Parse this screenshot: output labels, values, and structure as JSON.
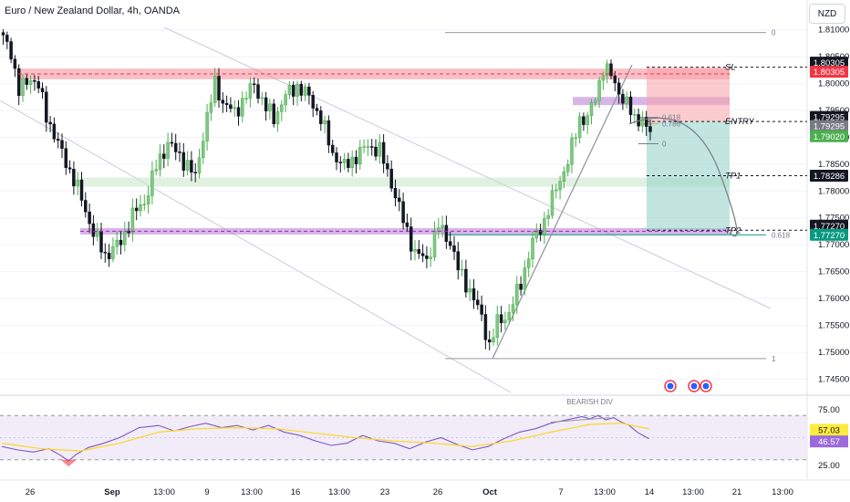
{
  "header": {
    "title": "Euro / New Zealand Dollar, 4h, OANDA",
    "currency": "NZD"
  },
  "chart_data": [
    {
      "type": "candlestick",
      "symbol": "EURNZD",
      "timeframe": "4h",
      "ylim": [
        1.7425,
        1.8125
      ],
      "y_ticks": [
        1.81,
        1.805,
        1.8,
        1.795,
        1.79,
        1.785,
        1.78,
        1.775,
        1.77,
        1.765,
        1.76,
        1.755,
        1.75,
        1.745
      ],
      "y_tick_labels": [
        "1.81000",
        "1.80500",
        "1.80000",
        "1.79500",
        "1.79000",
        "1.78500",
        "1.78000",
        "1.77500",
        "1.77000",
        "1.76500",
        "1.76000",
        "1.75500",
        "1.75000",
        "1.74500"
      ],
      "x_tick_labels": [
        "26",
        "Sep",
        "13:00",
        "9",
        "13:00",
        "16",
        "13:00",
        "23",
        "26",
        "Oct",
        "7",
        "13:00",
        "14",
        "13:00",
        "21",
        "13:00"
      ],
      "close_path": [
        [
          0,
          1.8095
        ],
        [
          3,
          1.806
        ],
        [
          5,
          1.7985
        ],
        [
          8,
          1.8012
        ],
        [
          10,
          1.7995
        ],
        [
          12,
          1.794
        ],
        [
          16,
          1.787
        ],
        [
          20,
          1.7805
        ],
        [
          24,
          1.7722
        ],
        [
          27,
          1.768
        ],
        [
          31,
          1.7705
        ],
        [
          34,
          1.7755
        ],
        [
          37,
          1.778
        ],
        [
          40,
          1.7845
        ],
        [
          43,
          1.789
        ],
        [
          46,
          1.7865
        ],
        [
          48,
          1.7848
        ],
        [
          50,
          1.7825
        ],
        [
          52,
          1.7905
        ],
        [
          55,
          1.8
        ],
        [
          57,
          1.7965
        ],
        [
          60,
          1.7945
        ],
        [
          63,
          1.7978
        ],
        [
          65,
          1.7998
        ],
        [
          68,
          1.7955
        ],
        [
          70,
          1.7935
        ],
        [
          73,
          1.7978
        ],
        [
          76,
          1.7995
        ],
        [
          79,
          1.7975
        ],
        [
          82,
          1.7935
        ],
        [
          85,
          1.787
        ],
        [
          88,
          1.7845
        ],
        [
          91,
          1.7865
        ],
        [
          94,
          1.7885
        ],
        [
          97,
          1.7875
        ],
        [
          100,
          1.7815
        ],
        [
          103,
          1.7745
        ],
        [
          106,
          1.7685
        ],
        [
          109,
          1.7672
        ],
        [
          112,
          1.7735
        ],
        [
          115,
          1.7705
        ],
        [
          117,
          1.7655
        ],
        [
          120,
          1.7615
        ],
        [
          123,
          1.7565
        ],
        [
          125,
          1.7512
        ],
        [
          127,
          1.7555
        ],
        [
          130,
          1.7572
        ],
        [
          133,
          1.763
        ],
        [
          136,
          1.7705
        ],
        [
          139,
          1.7745
        ],
        [
          142,
          1.7805
        ],
        [
          145,
          1.7855
        ],
        [
          148,
          1.7935
        ],
        [
          150,
          1.7935
        ],
        [
          152,
          1.7975
        ],
        [
          154,
          1.803
        ],
        [
          156,
          1.8015
        ],
        [
          158,
          1.7985
        ],
        [
          160,
          1.796
        ],
        [
          162,
          1.7935
        ],
        [
          164,
          1.7935
        ],
        [
          165,
          1.7912
        ]
      ],
      "zones": [
        {
          "from": 1.8028,
          "to": 1.8008,
          "color": "#f28b97"
        },
        {
          "from": 1.7975,
          "to": 1.796,
          "color": "#b779d4"
        },
        {
          "from": 1.7825,
          "to": 1.7808,
          "color": "#c8e6c9"
        },
        {
          "from": 1.7731,
          "to": 1.7719,
          "color": "#b779d4"
        }
      ],
      "price_levels": [
        {
          "label": "SL",
          "value": 1.80305
        },
        {
          "label": "ENTRY",
          "value": 1.79295
        },
        {
          "label": "TP1",
          "value": 1.78286
        },
        {
          "label": "TP2",
          "value": 1.7727
        }
      ],
      "fib_labels": [
        "0",
        "1",
        "0.618",
        "0.618",
        "0.786",
        "0"
      ],
      "price_tags": [
        {
          "text": "1.80305",
          "value": 1.80305,
          "bg": "#131722",
          "fg": "#ffffff"
        },
        {
          "text": "1.80305",
          "value": 1.80305,
          "bg": "#f23645",
          "fg": "#ffffff"
        },
        {
          "text": "1.79295",
          "value": 1.79295,
          "bg": "#131722",
          "fg": "#ffffff"
        },
        {
          "text": "1.79295",
          "value": 1.79295,
          "bg": "#787b86",
          "fg": "#ffffff"
        },
        {
          "text": "1.79020",
          "value": 1.7902,
          "bg": "#4caf50",
          "fg": "#ffffff"
        },
        {
          "text": "1.78286",
          "value": 1.78286,
          "bg": "#131722",
          "fg": "#ffffff"
        },
        {
          "text": "1.77270",
          "value": 1.7727,
          "bg": "#131722",
          "fg": "#ffffff"
        },
        {
          "text": "1.77270",
          "value": 1.7727,
          "bg": "#089981",
          "fg": "#ffffff"
        }
      ]
    },
    {
      "type": "line",
      "indicator": "RSI",
      "ylim": [
        15,
        85
      ],
      "y_ticks": [
        75,
        50,
        25
      ],
      "y_tick_labels": [
        "75.00",
        "50.00",
        "25.00"
      ],
      "band": [
        30,
        70
      ],
      "annotation": "BEARISH DIV",
      "rsi_path": [
        [
          0,
          42
        ],
        [
          4,
          39
        ],
        [
          8,
          37
        ],
        [
          12,
          40
        ],
        [
          15,
          34
        ],
        [
          17,
          29
        ],
        [
          19,
          35
        ],
        [
          22,
          41
        ],
        [
          26,
          45
        ],
        [
          30,
          50
        ],
        [
          35,
          59
        ],
        [
          40,
          61
        ],
        [
          44,
          56
        ],
        [
          48,
          60
        ],
        [
          52,
          63
        ],
        [
          56,
          59
        ],
        [
          60,
          61
        ],
        [
          64,
          57
        ],
        [
          68,
          61
        ],
        [
          72,
          55
        ],
        [
          76,
          52
        ],
        [
          80,
          47
        ],
        [
          84,
          43
        ],
        [
          88,
          45
        ],
        [
          92,
          52
        ],
        [
          96,
          47
        ],
        [
          100,
          45
        ],
        [
          104,
          40
        ],
        [
          108,
          46
        ],
        [
          112,
          50
        ],
        [
          116,
          44
        ],
        [
          120,
          39
        ],
        [
          124,
          42
        ],
        [
          128,
          49
        ],
        [
          132,
          55
        ],
        [
          136,
          58
        ],
        [
          140,
          63
        ],
        [
          144,
          66
        ],
        [
          148,
          69
        ],
        [
          150,
          67
        ],
        [
          152,
          70
        ],
        [
          154,
          66
        ],
        [
          156,
          68
        ],
        [
          158,
          64
        ],
        [
          160,
          61
        ],
        [
          162,
          55
        ],
        [
          164,
          51
        ],
        [
          165,
          49
        ]
      ],
      "ma_path": [
        [
          0,
          45
        ],
        [
          10,
          40
        ],
        [
          20,
          38
        ],
        [
          30,
          45
        ],
        [
          40,
          55
        ],
        [
          50,
          58
        ],
        [
          60,
          59
        ],
        [
          70,
          58
        ],
        [
          80,
          54
        ],
        [
          90,
          50
        ],
        [
          100,
          47
        ],
        [
          110,
          45
        ],
        [
          120,
          42
        ],
        [
          130,
          47
        ],
        [
          140,
          55
        ],
        [
          150,
          62
        ],
        [
          158,
          63
        ],
        [
          165,
          58
        ]
      ],
      "value_tags": [
        {
          "text": "57.03",
          "value": 57.03,
          "bg": "#ffeb3b",
          "fg": "#131722"
        },
        {
          "text": "46.57",
          "value": 46.57,
          "bg": "#9c6ade",
          "fg": "#ffffff"
        }
      ]
    }
  ]
}
